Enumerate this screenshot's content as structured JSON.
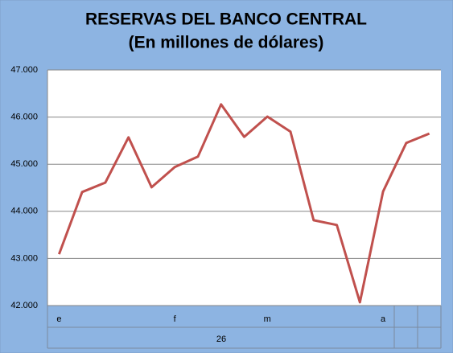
{
  "chart_data": {
    "type": "line",
    "title": "RESERVAS DEL BANCO CENTRAL",
    "subtitle": "(En millones de dólares)",
    "categories": [
      "e",
      null,
      null,
      null,
      null,
      "f",
      null,
      null,
      null,
      "m",
      null,
      null,
      null,
      null,
      "a",
      null,
      null
    ],
    "x_group_label": "26",
    "series": [
      {
        "color": "#c0504d",
        "values": [
          43090,
          44410,
          44610,
          45570,
          44510,
          44940,
          45160,
          46270,
          45580,
          46010,
          45690,
          43810,
          43710,
          42070,
          44420,
          45450,
          45650
        ]
      }
    ],
    "ylim": [
      42000,
      47000
    ],
    "yticks": [
      {
        "value": 42000,
        "label": "42.000"
      },
      {
        "value": 43000,
        "label": "43.000"
      },
      {
        "value": 44000,
        "label": "44.000"
      },
      {
        "value": 45000,
        "label": "45.000"
      },
      {
        "value": 46000,
        "label": "46.000"
      },
      {
        "value": 47000,
        "label": "47.000"
      }
    ],
    "grid": true
  }
}
